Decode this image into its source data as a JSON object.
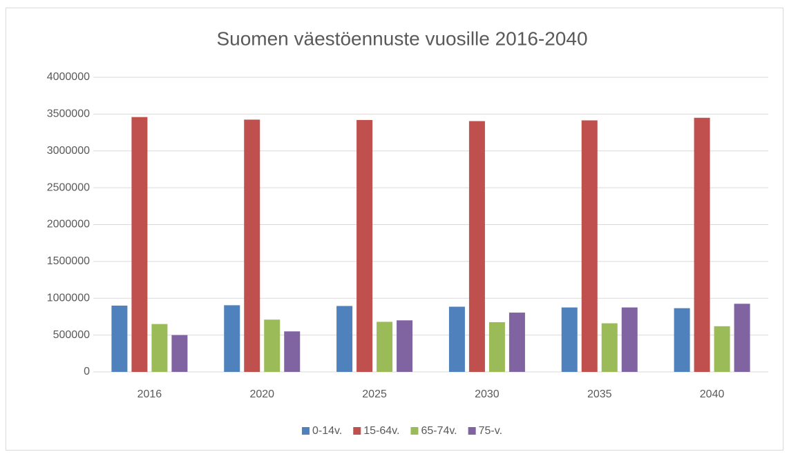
{
  "chart_data": {
    "type": "bar",
    "title": "Suomen väestöennuste vuosille 2016-2040",
    "categories": [
      "2016",
      "2020",
      "2025",
      "2030",
      "2035",
      "2040"
    ],
    "series": [
      {
        "name": "0-14v.",
        "color": "#4f81bd",
        "values": [
          900000,
          905000,
          895000,
          885000,
          875000,
          865000
        ]
      },
      {
        "name": "15-64v.",
        "color": "#c0504d",
        "values": [
          3460000,
          3425000,
          3420000,
          3405000,
          3415000,
          3450000
        ]
      },
      {
        "name": "65-74v.",
        "color": "#9bbb59",
        "values": [
          650000,
          710000,
          680000,
          675000,
          660000,
          620000
        ]
      },
      {
        "name": "75-v.",
        "color": "#8064a2",
        "values": [
          500000,
          550000,
          700000,
          805000,
          875000,
          925000
        ]
      }
    ],
    "ylim": [
      0,
      4000000
    ],
    "yticks": [
      0,
      500000,
      1000000,
      1500000,
      2000000,
      2500000,
      3000000,
      3500000,
      4000000
    ],
    "grid": true,
    "legend": "bottom"
  }
}
